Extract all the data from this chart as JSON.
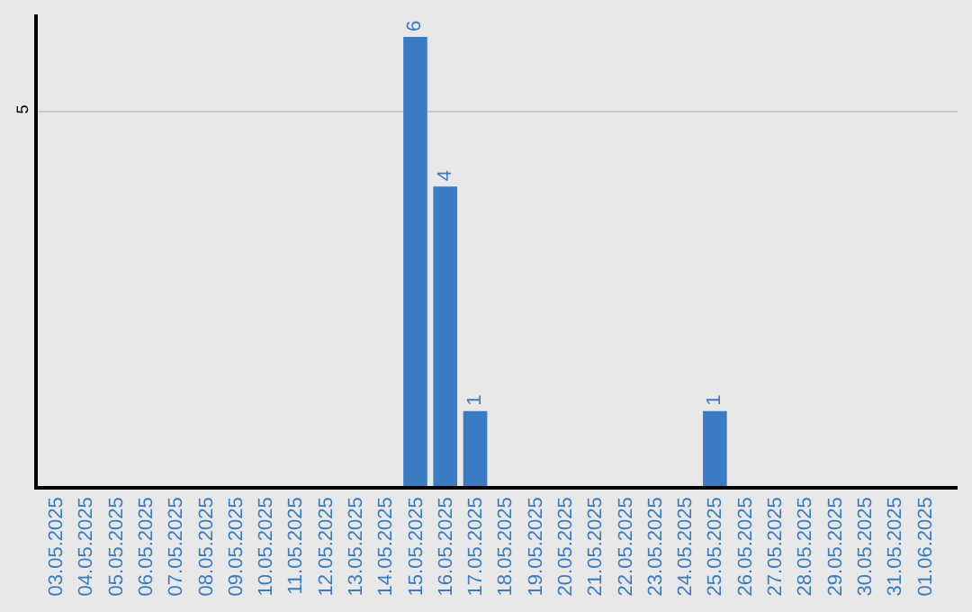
{
  "chart_data": {
    "type": "bar",
    "categories": [
      "03.05.2025",
      "04.05.2025",
      "05.05.2025",
      "06.05.2025",
      "07.05.2025",
      "08.05.2025",
      "09.05.2025",
      "10.05.2025",
      "11.05.2025",
      "12.05.2025",
      "13.05.2025",
      "14.05.2025",
      "15.05.2025",
      "16.05.2025",
      "17.05.2025",
      "18.05.2025",
      "19.05.2025",
      "20.05.2025",
      "21.05.2025",
      "22.05.2025",
      "23.05.2025",
      "24.05.2025",
      "25.05.2025",
      "26.05.2025",
      "27.05.2025",
      "28.05.2025",
      "29.05.2025",
      "30.05.2025",
      "31.05.2025",
      "01.06.2025"
    ],
    "values": [
      null,
      null,
      null,
      null,
      null,
      null,
      null,
      null,
      null,
      null,
      null,
      null,
      6,
      4,
      1,
      null,
      null,
      null,
      null,
      null,
      null,
      null,
      1,
      null,
      null,
      null,
      null,
      null,
      null,
      null
    ],
    "value_labels": [
      null,
      null,
      null,
      null,
      null,
      null,
      null,
      null,
      null,
      null,
      null,
      null,
      "6",
      "4",
      "1",
      null,
      null,
      null,
      null,
      null,
      null,
      null,
      "1",
      null,
      null,
      null,
      null,
      null,
      null,
      null
    ],
    "color": "#3a7cc4",
    "ylim": [
      0,
      6.3
    ],
    "yticks": [
      5
    ],
    "grid": "y",
    "legend": false
  }
}
